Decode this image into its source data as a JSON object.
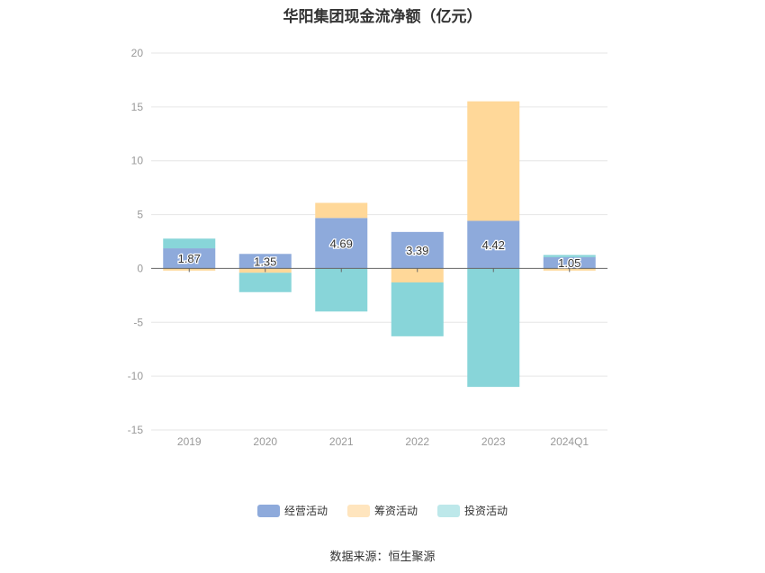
{
  "chart_data": {
    "type": "bar",
    "stacked": true,
    "title": "华阳集团现金流净额（亿元）",
    "categories": [
      "2019",
      "2020",
      "2021",
      "2022",
      "2023",
      "2024Q1"
    ],
    "series": [
      {
        "name": "经营活动",
        "color": "#8EAADB",
        "values": [
          1.87,
          1.35,
          4.69,
          3.39,
          4.42,
          1.05
        ]
      },
      {
        "name": "筹资活动",
        "color": "#FFD899",
        "values": [
          -0.2,
          -0.4,
          1.4,
          -1.3,
          11.1,
          -0.2
        ]
      },
      {
        "name": "投资活动",
        "color": "#88D5D9",
        "values": [
          0.9,
          -1.8,
          -4.0,
          -5.0,
          -11.0,
          0.2
        ]
      }
    ],
    "data_labels": [
      "1.87",
      "1.35",
      "4.69",
      "3.39",
      "4.42",
      "1.05"
    ],
    "ylim": [
      -15,
      20
    ],
    "yticks": [
      -15,
      -10,
      -5,
      0,
      5,
      10,
      15,
      20
    ],
    "grid": true,
    "legend_position": "bottom"
  },
  "legend_colors": {
    "经营活动": "#8EAADB",
    "筹资活动": "#FFE5BE",
    "投资活动": "#BDE8EA"
  },
  "source": "数据来源：恒生聚源"
}
